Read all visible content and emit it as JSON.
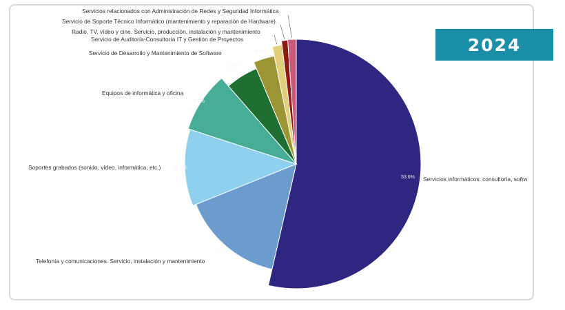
{
  "banner": {
    "year": "2024"
  },
  "colors": {
    "banner_bg": "#1a8ea6"
  },
  "chart_data": {
    "type": "pie",
    "title": "",
    "slices": [
      {
        "label": "Servicios informáticos: consultoría, softw",
        "value": 53.6,
        "value_label": "53.6%",
        "color": "#2e2680"
      },
      {
        "label": "Telefonía y comunicaciones. Servicio, instalación y mantenimiento",
        "value": 15.3,
        "value_label": "15.3%",
        "color": "#6b9ccd"
      },
      {
        "label": "Soportes grabados (sonido, vídeo, informática, etc.)",
        "value": 11.1,
        "value_label": "11.1%",
        "color": "#8ed0ee"
      },
      {
        "label": "Equipos de informática y oficina",
        "value": 8.6,
        "value_label": "8.6%",
        "color": "#47ad97"
      },
      {
        "label": "Servicio de Desarrollo y Mantenimiento de Software",
        "value": 5.1,
        "value_label": "5.1%",
        "color": "#1e6f31"
      },
      {
        "label": "Servicio de Auditoría-Consultoría IT y Gestión de Proyectos",
        "value": 3.1,
        "value_label": "3.1%",
        "color": "#9c9533"
      },
      {
        "label": "Radio, TV, vídeo y cine. Servicio, producción, instalación y mantenimiento",
        "value": 1.3,
        "value_label": "",
        "color": "#e2cf7d"
      },
      {
        "label": "Servicio de Soporte Técnico Informático (mantenimiento y reparación de Hardware)",
        "value": 0.8,
        "value_label": "",
        "color": "#8c1a12"
      },
      {
        "label": "Servicios relacionados con Administración de Redes y Seguridad Informática",
        "value": 1.1,
        "value_label": "",
        "color": "#c9587a"
      }
    ]
  }
}
